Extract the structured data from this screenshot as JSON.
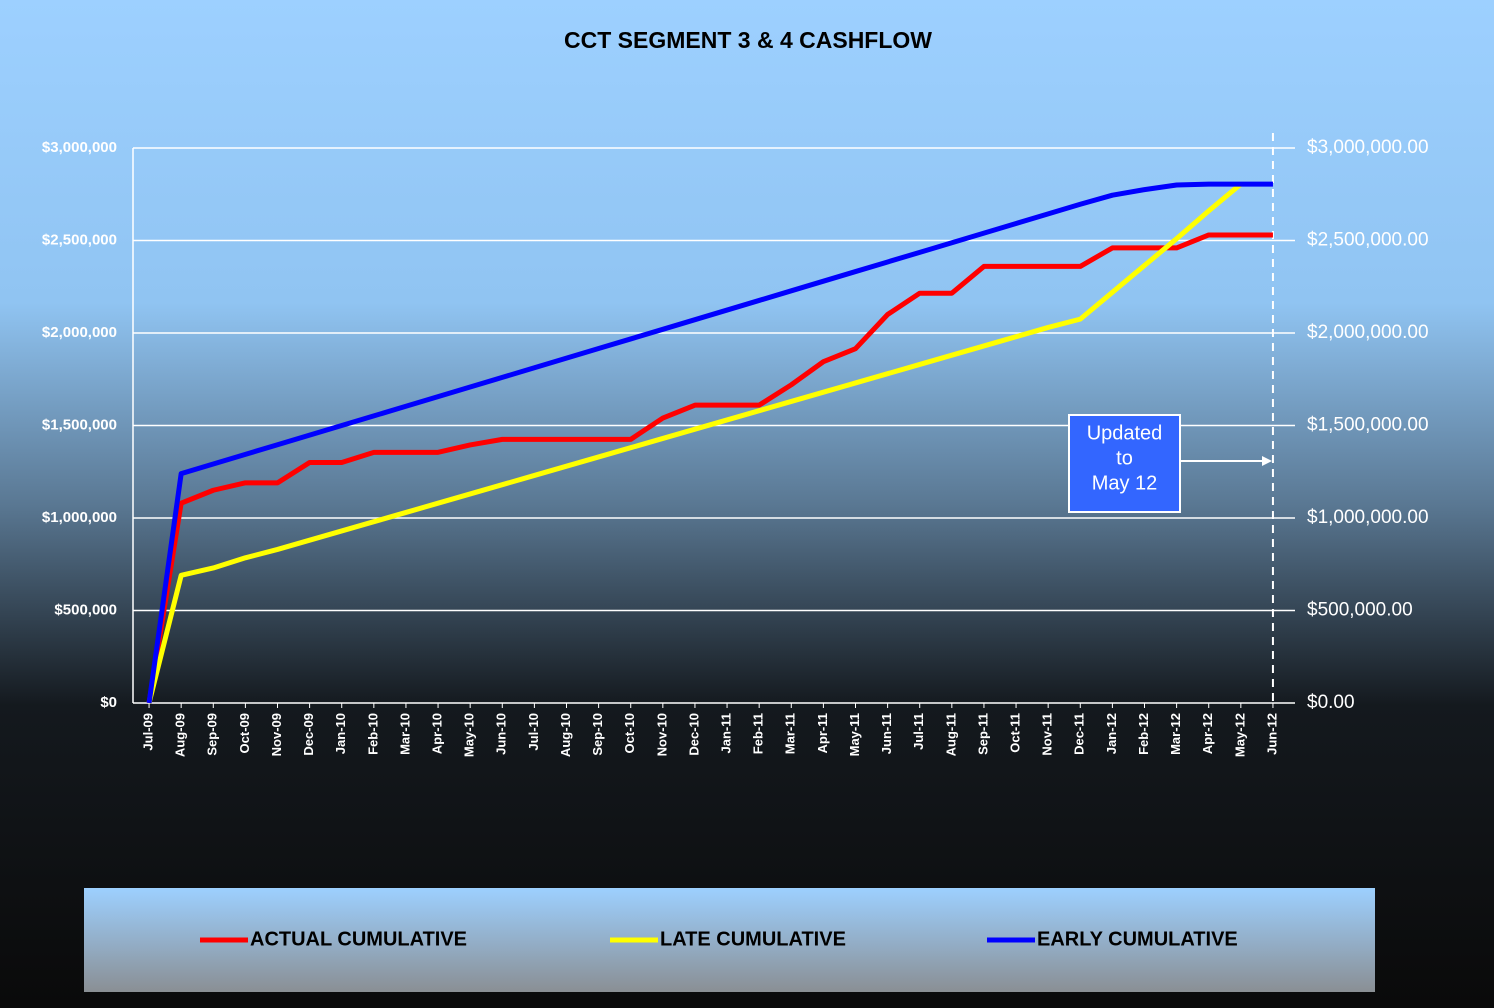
{
  "chart_data": {
    "type": "line",
    "title": "CCT SEGMENT 3 & 4 CASHFLOW",
    "categories": [
      "Jul-09",
      "Aug-09",
      "Sep-09",
      "Oct-09",
      "Nov-09",
      "Dec-09",
      "Jan-10",
      "Feb-10",
      "Mar-10",
      "Apr-10",
      "May-10",
      "Jun-10",
      "Jul-10",
      "Aug-10",
      "Sep-10",
      "Oct-10",
      "Nov-10",
      "Dec-10",
      "Jan-11",
      "Feb-11",
      "Mar-11",
      "Apr-11",
      "May-11",
      "Jun-11",
      "Jul-11",
      "Aug-11",
      "Sep-11",
      "Oct-11",
      "Nov-11",
      "Dec-11",
      "Jan-12",
      "Feb-12",
      "Mar-12",
      "Apr-12",
      "May-12",
      "Jun-12"
    ],
    "series": [
      {
        "name": "ACTUAL CUMULATIVE",
        "color": "#ff0000",
        "values": [
          0,
          1080000,
          1150000,
          1190000,
          1190000,
          1300000,
          1300000,
          1355000,
          1355000,
          1355000,
          1395000,
          1425000,
          1425000,
          1425000,
          1425000,
          1425000,
          1540000,
          1610000,
          1610000,
          1610000,
          1720000,
          1845000,
          1915000,
          2100000,
          2215000,
          2215000,
          2360000,
          2360000,
          2360000,
          2360000,
          2460000,
          2460000,
          2460000,
          2530000,
          2530000,
          2530000
        ]
      },
      {
        "name": "LATE CUMULATIVE",
        "color": "#ffff00",
        "values": [
          0,
          690000,
          730000,
          785000,
          830000,
          880000,
          930000,
          980000,
          1030000,
          1080000,
          1130000,
          1180000,
          1230000,
          1280000,
          1330000,
          1380000,
          1430000,
          1480000,
          1530000,
          1580000,
          1630000,
          1680000,
          1730000,
          1780000,
          1830000,
          1880000,
          1930000,
          1980000,
          2030000,
          2075000,
          2220000,
          2365000,
          2510000,
          2660000,
          2805000,
          null
        ]
      },
      {
        "name": "EARLY CUMULATIVE",
        "color": "#0000ff",
        "values": [
          0,
          1240000,
          1292000,
          1344000,
          1396000,
          1448000,
          1500000,
          1552000,
          1604000,
          1656000,
          1708000,
          1760000,
          1812000,
          1864000,
          1916000,
          1968000,
          2020000,
          2072000,
          2124000,
          2176000,
          2228000,
          2280000,
          2332000,
          2384000,
          2436000,
          2488000,
          2540000,
          2592000,
          2644000,
          2696000,
          2745000,
          2775000,
          2800000,
          2805000,
          2805000,
          2805000
        ]
      }
    ],
    "ylim": [
      0,
      3000000
    ],
    "yticks": [
      {
        "value": 0,
        "label": "$0"
      },
      {
        "value": 500000,
        "label": "$500,000"
      },
      {
        "value": 1000000,
        "label": "$1,000,000"
      },
      {
        "value": 1500000,
        "label": "$1,500,000"
      },
      {
        "value": 2000000,
        "label": "$2,000,000"
      },
      {
        "value": 2500000,
        "label": "$2,500,000"
      },
      {
        "value": 3000000,
        "label": "$3,000,000"
      }
    ],
    "y2lim": [
      0,
      3000000
    ],
    "y2ticks": [
      {
        "value": 0,
        "label": "$0.00"
      },
      {
        "value": 500000,
        "label": "$500,000.00"
      },
      {
        "value": 1000000,
        "label": "$1,000,000.00"
      },
      {
        "value": 1500000,
        "label": "$1,500,000.00"
      },
      {
        "value": 2000000,
        "label": "$2,000,000.00"
      },
      {
        "value": 2500000,
        "label": "$2,500,000.00"
      },
      {
        "value": 3000000,
        "label": "$3,000,000.00"
      }
    ],
    "grid": true,
    "legend": "bottom",
    "annotation": [
      "Updated",
      "to",
      "May 12"
    ]
  }
}
